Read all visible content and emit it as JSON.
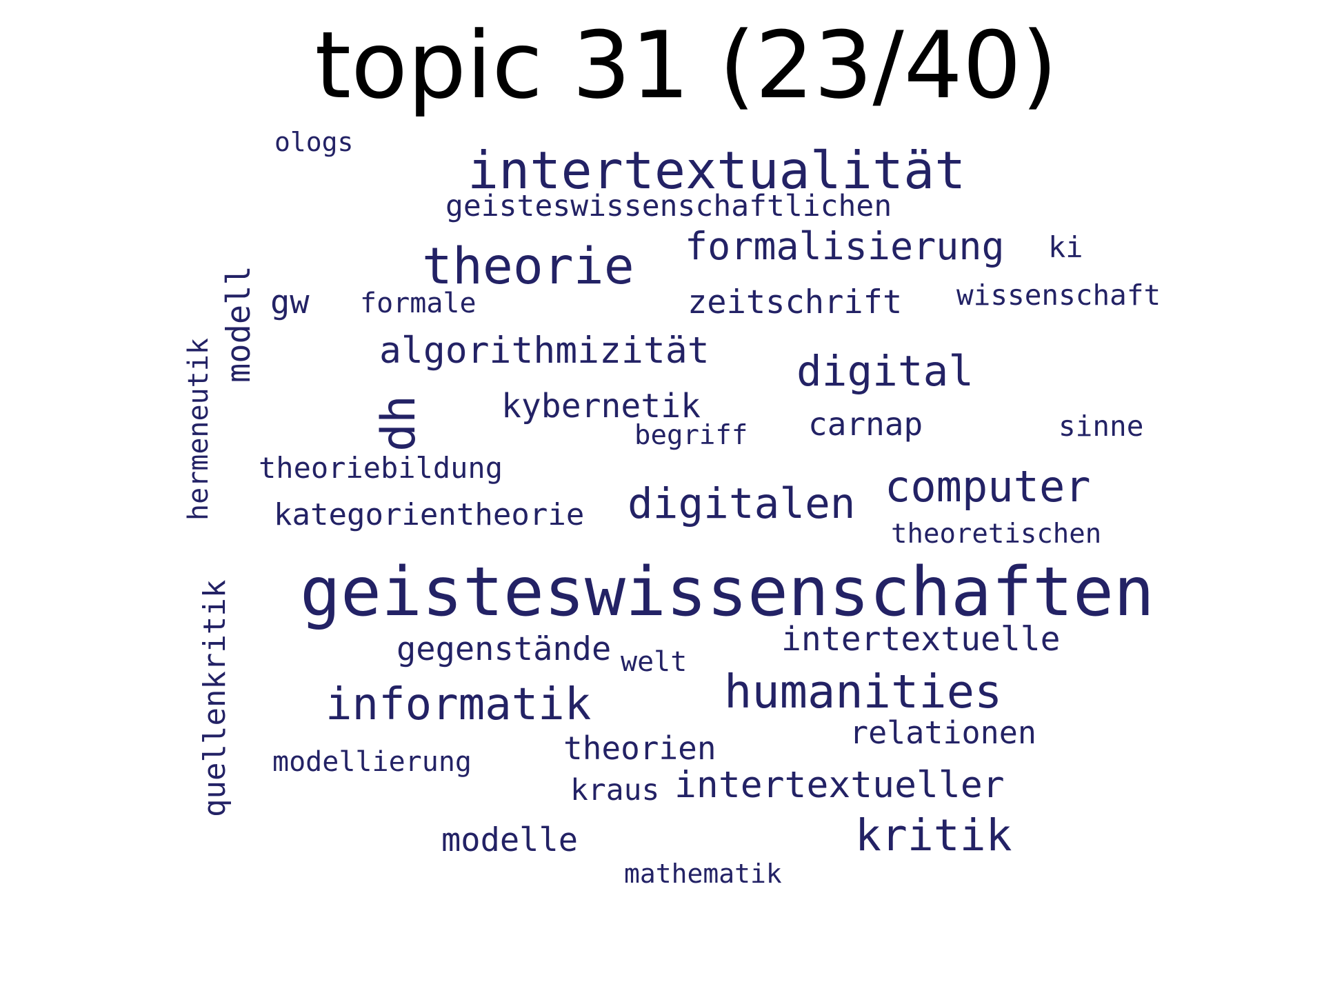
{
  "title": "topic 31 (23/40)",
  "word_color": "#232265",
  "words": [
    {
      "text": "geisteswissenschaften",
      "size": "large",
      "rotated": false
    },
    {
      "text": "intertextualität",
      "size": "medium",
      "rotated": false
    },
    {
      "text": "theorie",
      "size": "medium",
      "rotated": false
    },
    {
      "text": "humanities",
      "size": "medium",
      "rotated": false
    },
    {
      "text": "informatik",
      "size": "medium",
      "rotated": false
    },
    {
      "text": "kritik",
      "size": "medium",
      "rotated": false
    },
    {
      "text": "computer",
      "size": "medium",
      "rotated": false
    },
    {
      "text": "digitalen",
      "size": "medium",
      "rotated": false
    },
    {
      "text": "digital",
      "size": "medium",
      "rotated": false
    },
    {
      "text": "dh",
      "size": "medium",
      "rotated": true
    },
    {
      "text": "formalisierung",
      "size": "medium",
      "rotated": false
    },
    {
      "text": "algorithmizität",
      "size": "medium",
      "rotated": false
    },
    {
      "text": "modell",
      "size": "medium",
      "rotated": true
    },
    {
      "text": "gw",
      "size": "medium",
      "rotated": false
    },
    {
      "text": "quellenkritik",
      "size": "small",
      "rotated": true
    },
    {
      "text": "intertextueller",
      "size": "small",
      "rotated": false
    },
    {
      "text": "zeitschrift",
      "size": "small",
      "rotated": false
    },
    {
      "text": "kybernetik",
      "size": "small",
      "rotated": false
    },
    {
      "text": "intertextuelle",
      "size": "small",
      "rotated": false
    },
    {
      "text": "relationen",
      "size": "small",
      "rotated": false
    },
    {
      "text": "modelle",
      "size": "small",
      "rotated": false
    },
    {
      "text": "carnap",
      "size": "small",
      "rotated": false
    },
    {
      "text": "kategorientheorie",
      "size": "small",
      "rotated": false
    },
    {
      "text": "gegenstände",
      "size": "small",
      "rotated": false
    },
    {
      "text": "theorien",
      "size": "small",
      "rotated": false
    },
    {
      "text": "geisteswissenschaftlichen",
      "size": "small",
      "rotated": false
    },
    {
      "text": "theoriebildung",
      "size": "small",
      "rotated": false
    },
    {
      "text": "hermeneutik",
      "size": "small",
      "rotated": true
    },
    {
      "text": "wissenschaft",
      "size": "small",
      "rotated": false
    },
    {
      "text": "kraus",
      "size": "small",
      "rotated": false
    },
    {
      "text": "sinne",
      "size": "small",
      "rotated": false
    },
    {
      "text": "theoretischen",
      "size": "small",
      "rotated": false
    },
    {
      "text": "formale",
      "size": "small",
      "rotated": false
    },
    {
      "text": "modellierung",
      "size": "small",
      "rotated": false
    },
    {
      "text": "welt",
      "size": "small",
      "rotated": false
    },
    {
      "text": "begriff",
      "size": "small",
      "rotated": false
    },
    {
      "text": "mathematik",
      "size": "small",
      "rotated": false
    },
    {
      "text": "ologs",
      "size": "small",
      "rotated": false
    },
    {
      "text": "ki",
      "size": "small",
      "rotated": false
    }
  ]
}
